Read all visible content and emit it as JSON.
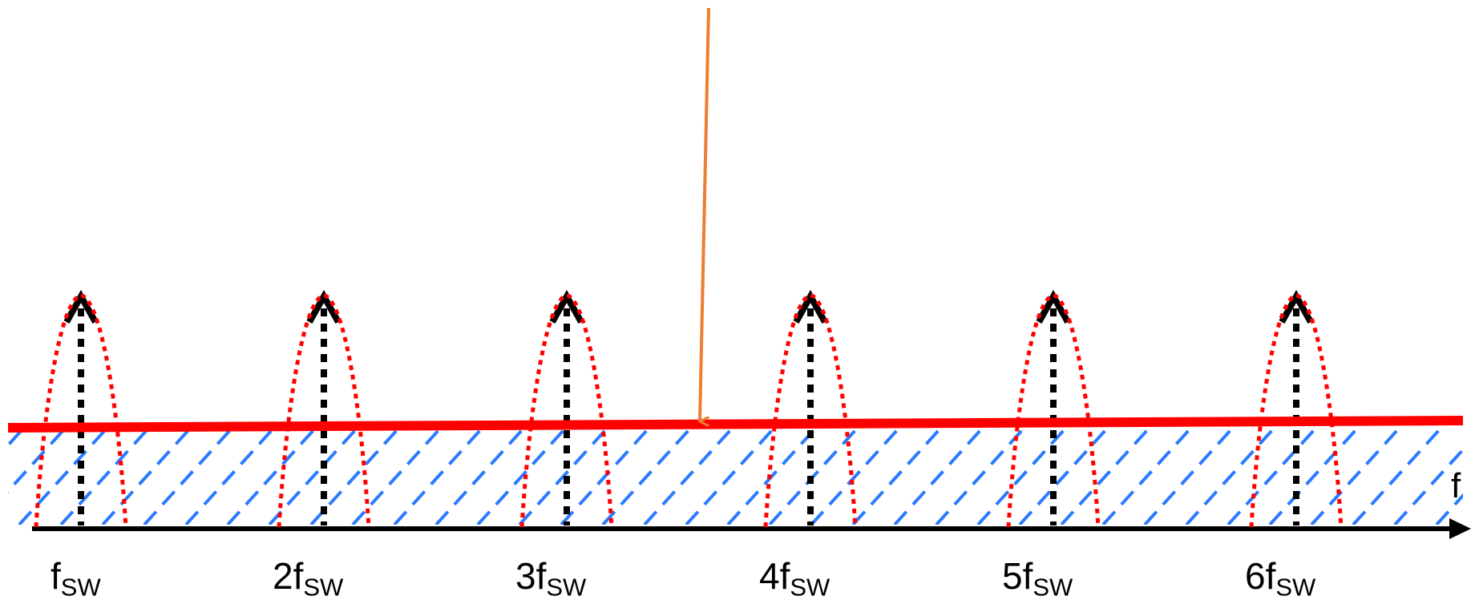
{
  "axis": {
    "label": "f"
  },
  "harmonics": [
    {
      "prefix": "",
      "sub": "SW"
    },
    {
      "prefix": "2",
      "sub": "SW"
    },
    {
      "prefix": "3",
      "sub": "SW"
    },
    {
      "prefix": "4",
      "sub": "SW"
    },
    {
      "prefix": "5",
      "sub": "SW"
    },
    {
      "prefix": "6",
      "sub": "SW"
    }
  ],
  "colors": {
    "axis": "#000000",
    "harmonic_line": "#000000",
    "spread_envelope": "#ff0000",
    "noise_floor": "#ff0000",
    "hatch": "#2a7bff",
    "pointer_arrow": "#ed7d31"
  },
  "label_base": "f"
}
